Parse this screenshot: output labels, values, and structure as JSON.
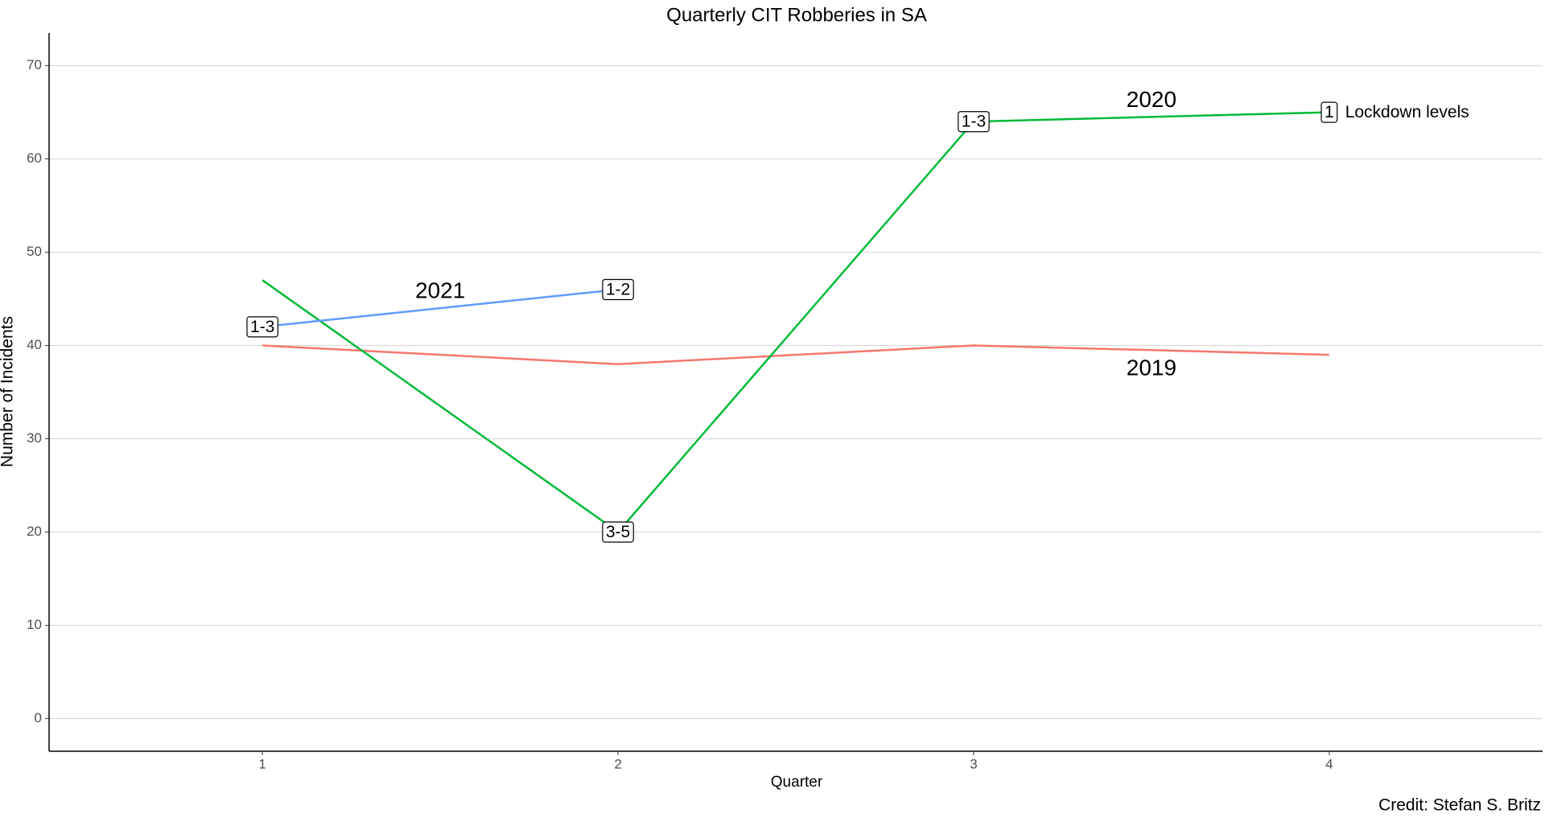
{
  "chart_data": {
    "type": "line",
    "title": "Quarterly CIT Robberies in SA",
    "x_label": "Quarter",
    "y_label": "Number of Incidents",
    "caption": "Credit: Stefan S. Britz",
    "annotation": "Lockdown levels",
    "x": [
      1,
      2,
      3,
      4
    ],
    "series": [
      {
        "name": "2019",
        "color": "#F8766D",
        "values": [
          40,
          38,
          40,
          39
        ],
        "point_labels": [
          null,
          null,
          null,
          null
        ]
      },
      {
        "name": "2020",
        "color": "#00BA38",
        "values": [
          47,
          20,
          64,
          65
        ],
        "point_labels": [
          null,
          "3-5",
          "1-3",
          "1"
        ]
      },
      {
        "name": "2021",
        "color": "#619CFF",
        "values": [
          42,
          46,
          null,
          null
        ],
        "point_labels": [
          "1-3",
          "1-2",
          null,
          null
        ]
      }
    ],
    "xlim": [
      0.4,
      4.6
    ],
    "ylim": [
      -3.5,
      73.5
    ],
    "xticks": [
      1,
      2,
      3,
      4
    ],
    "yticks": [
      0,
      10,
      20,
      30,
      40,
      50,
      60,
      70
    ],
    "grid": true
  }
}
